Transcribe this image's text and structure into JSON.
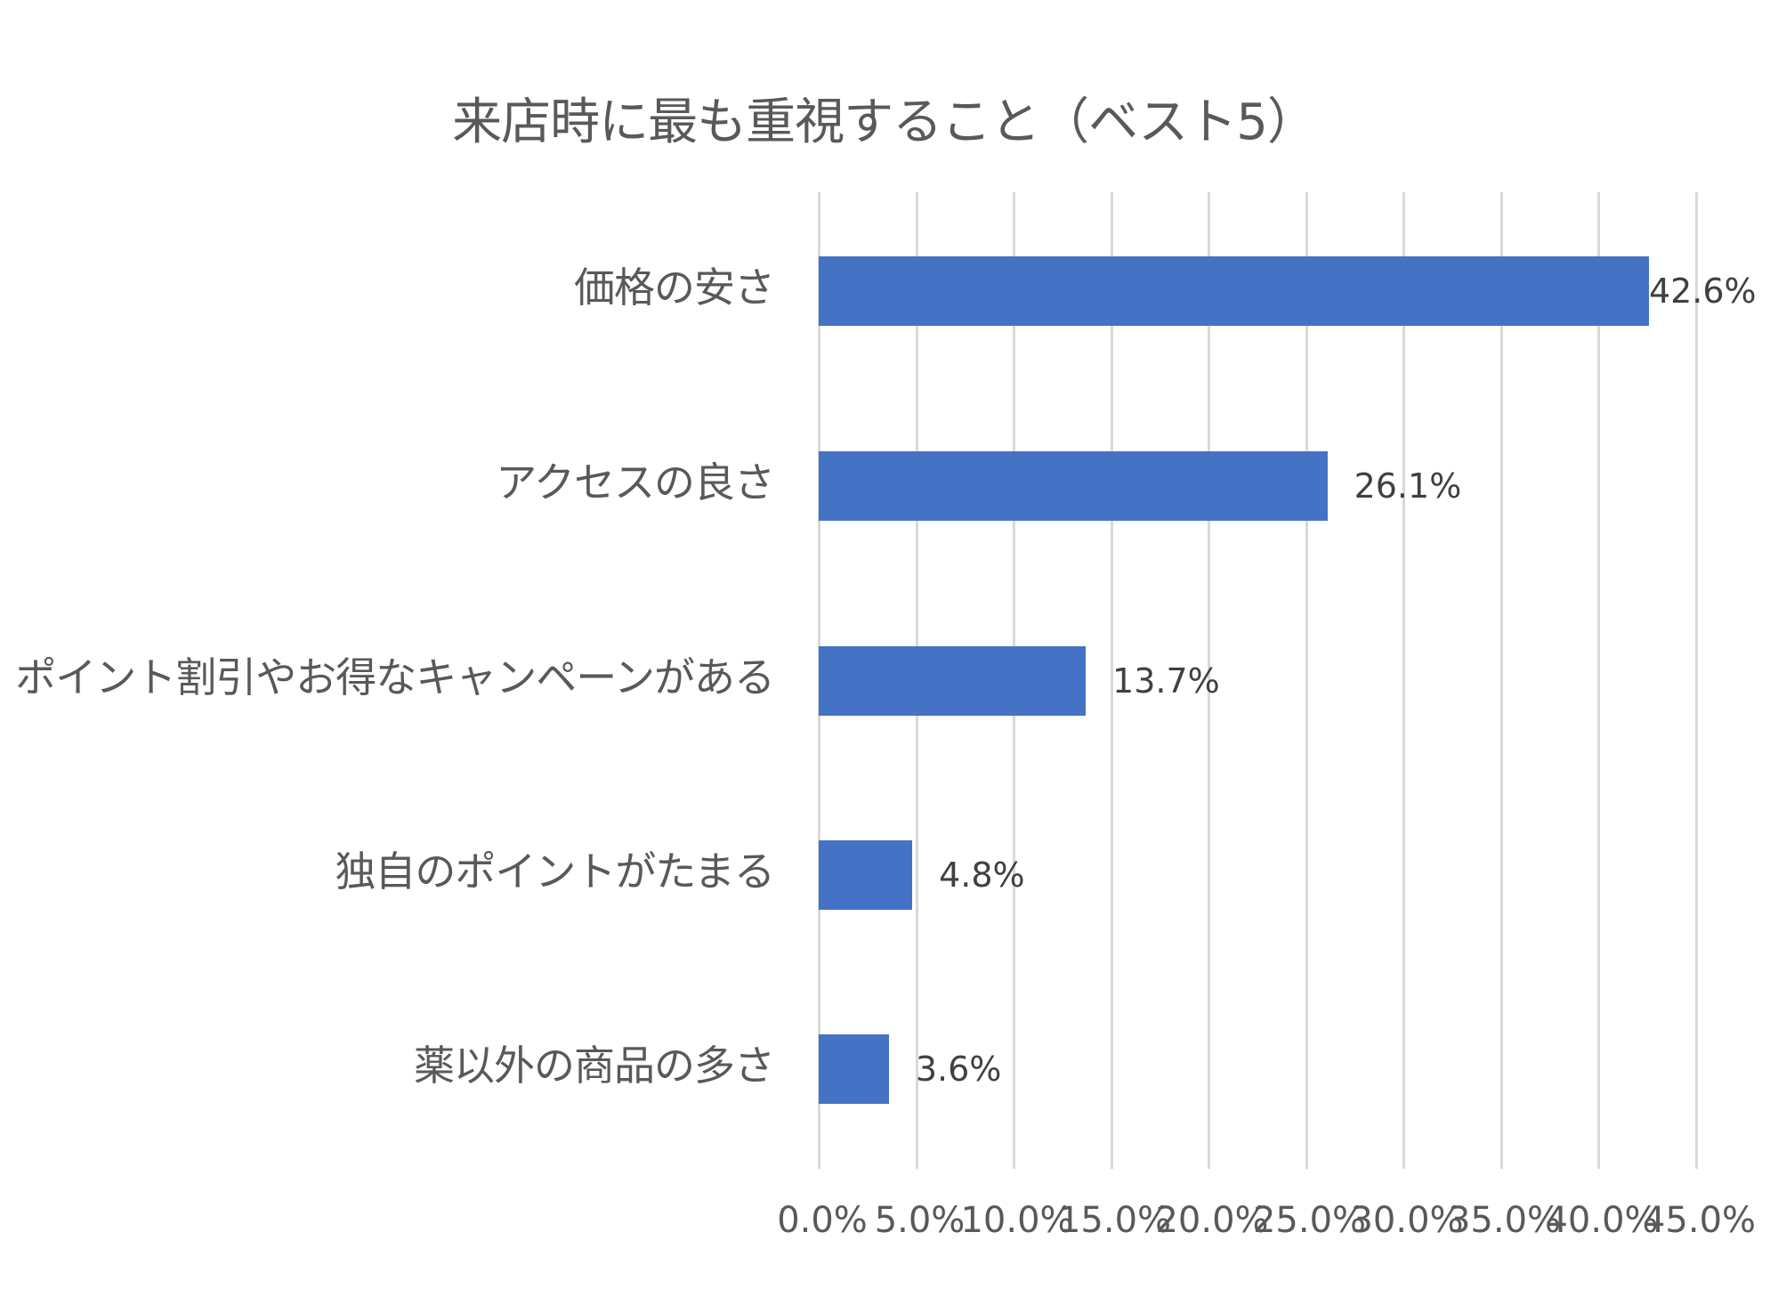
{
  "chart_data": {
    "type": "bar",
    "orientation": "horizontal",
    "title": "来店時に最も重視すること（ベスト5）",
    "categories": [
      "価格の安さ",
      "アクセスの良さ",
      "ポイント割引やお得なキャンペーンがある",
      "独自のポイントがたまる",
      "薬以外の商品の多さ"
    ],
    "values": [
      42.6,
      26.1,
      13.7,
      4.8,
      3.6
    ],
    "data_labels": [
      "42.6%",
      "26.1%",
      "13.7%",
      "4.8%",
      "3.6%"
    ],
    "xlabel": "",
    "ylabel": "",
    "xlim": [
      0,
      45
    ],
    "x_ticks": [
      "0.0%",
      "5.0%",
      "10.0%",
      "15.0%",
      "20.0%",
      "25.0%",
      "30.0%",
      "35.0%",
      "40.0%",
      "45.0%"
    ],
    "grid": "vertical",
    "legend": "none",
    "bar_color": "#4472C4"
  }
}
